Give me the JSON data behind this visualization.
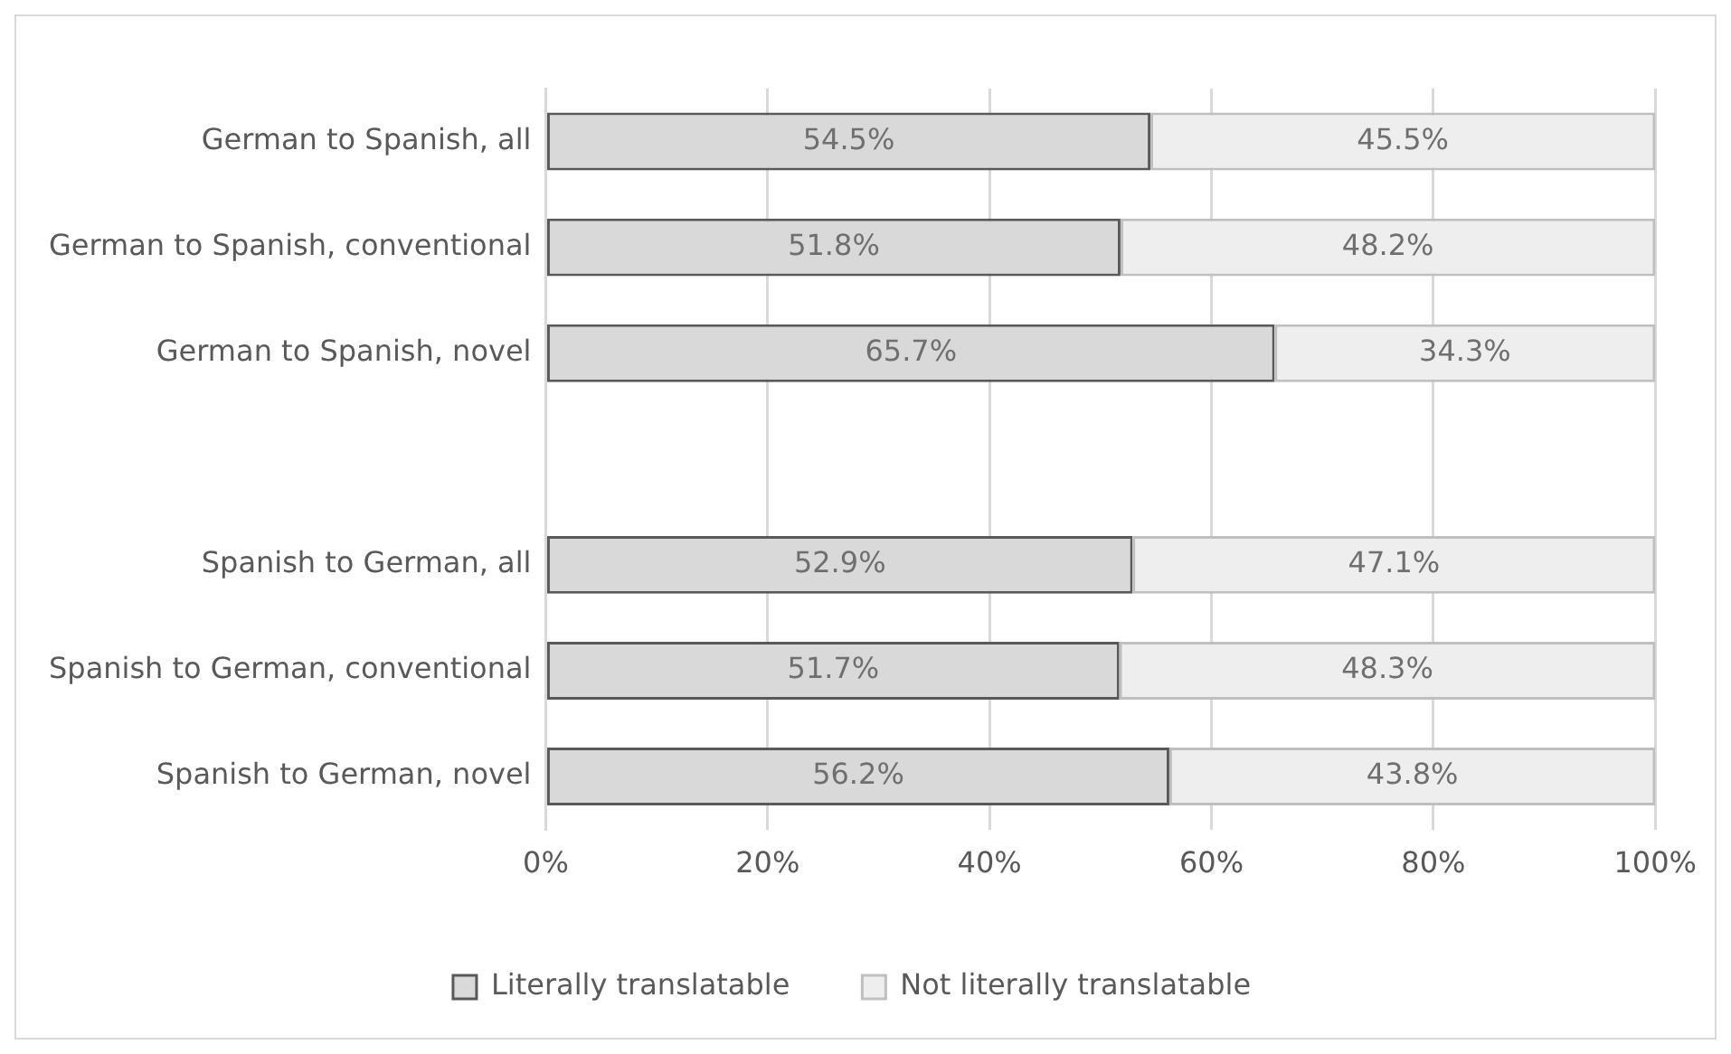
{
  "chart_data": {
    "type": "bar",
    "orientation": "horizontal",
    "stacked": true,
    "categories": [
      "German to Spanish, all",
      "German to Spanish, conventional",
      "German to Spanish, novel",
      null,
      "Spanish to German, all",
      "Spanish to German, conventional",
      "Spanish to German, novel"
    ],
    "series": [
      {
        "name": "Literally translatable",
        "color": "#d9d9d9",
        "values": [
          54.5,
          51.8,
          65.7,
          null,
          52.9,
          51.7,
          56.2
        ],
        "value_labels": [
          "54.5%",
          "51.8%",
          "65.7%",
          null,
          "52.9%",
          "51.7%",
          "56.2%"
        ]
      },
      {
        "name": "Not literally translatable",
        "color": "#eeeeee",
        "values": [
          45.5,
          48.2,
          34.3,
          null,
          47.1,
          48.3,
          43.8
        ],
        "value_labels": [
          "45.5%",
          "48.2%",
          "34.3%",
          null,
          "47.1%",
          "48.3%",
          "43.8%"
        ]
      }
    ],
    "xlim": [
      0,
      100
    ],
    "xticks": [
      {
        "value": 0,
        "label": "0%"
      },
      {
        "value": 20,
        "label": "20%"
      },
      {
        "value": 40,
        "label": "40%"
      },
      {
        "value": 60,
        "label": "60%"
      },
      {
        "value": 80,
        "label": "80%"
      },
      {
        "value": 100,
        "label": "100%"
      }
    ],
    "grid": "x",
    "legend": "bottom"
  }
}
